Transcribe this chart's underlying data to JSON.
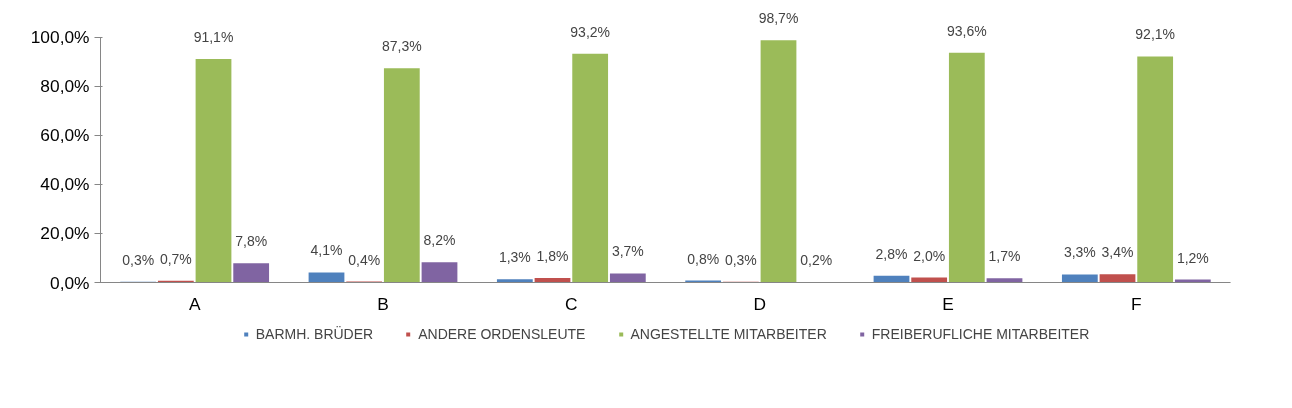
{
  "chart_data": {
    "type": "bar",
    "categories": [
      "A",
      "B",
      "C",
      "D",
      "E",
      "F"
    ],
    "series": [
      {
        "name": "BARMH. BRÜDER",
        "color": "#4f81bd",
        "values": [
          0.3,
          4.1,
          1.3,
          0.8,
          2.8,
          3.3
        ],
        "value_labels": [
          "0,3%",
          "4,1%",
          "1,3%",
          "0,8%",
          "2,8%",
          "3,3%"
        ]
      },
      {
        "name": "ANDERE ORDENSLEUTE",
        "color": "#c0504d",
        "values": [
          0.7,
          0.4,
          1.8,
          0.3,
          2.0,
          3.4
        ],
        "value_labels": [
          "0,7%",
          "0,4%",
          "1,8%",
          "0,3%",
          "2,0%",
          "3,4%"
        ]
      },
      {
        "name": "ANGESTELLTE MITARBEITER",
        "color": "#9bbb59",
        "values": [
          91.1,
          87.3,
          93.2,
          98.7,
          93.6,
          92.1
        ],
        "value_labels": [
          "91,1%",
          "87,3%",
          "93,2%",
          "98,7%",
          "93,6%",
          "92,1%"
        ]
      },
      {
        "name": "FREIBERUFLICHE MITARBEITER",
        "color": "#8064a2",
        "values": [
          7.8,
          8.2,
          3.7,
          0.2,
          1.7,
          1.2
        ],
        "value_labels": [
          "7,8%",
          "8,2%",
          "3,7%",
          "0,2%",
          "1,7%",
          "1,2%"
        ]
      }
    ],
    "ylim": [
      0,
      100
    ],
    "yticks": [
      {
        "value": 0,
        "label": "0,0%"
      },
      {
        "value": 20,
        "label": "20,0%"
      },
      {
        "value": 40,
        "label": "40,0%"
      },
      {
        "value": 60,
        "label": "60,0%"
      },
      {
        "value": 80,
        "label": "80,0%"
      },
      {
        "value": 100,
        "label": "100,0%"
      }
    ],
    "grid": false,
    "legend": "bottom"
  }
}
